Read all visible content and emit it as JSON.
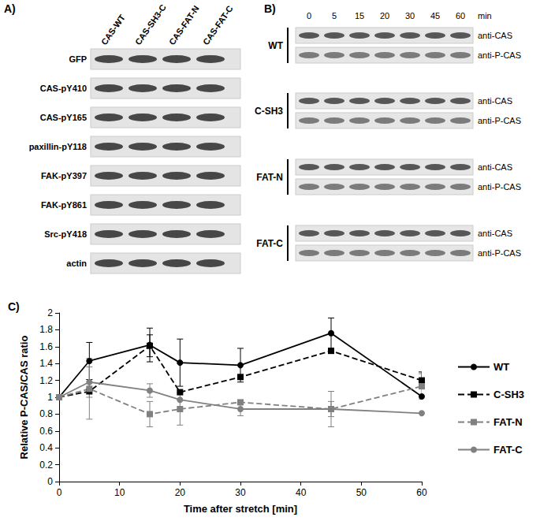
{
  "panels": [
    {
      "label": "A)",
      "columns": [
        "CAS-WT",
        "CAS-SH3-C",
        "CAS-FAT-N",
        "CAS-FAT-C"
      ],
      "rows": [
        "GFP",
        "CAS-pY410",
        "CAS-pY165",
        "paxillin-pY118",
        "FAK-pY397",
        "FAK-pY861",
        "Src-pY418",
        "actin"
      ]
    },
    {
      "label": "B)",
      "times": [
        0,
        5,
        15,
        20,
        30,
        45,
        60
      ],
      "time_unit": "min",
      "groups": [
        "WT",
        "C-SH3",
        "FAT-N",
        "FAT-C"
      ],
      "bands": [
        "anti-CAS",
        "anti-P-CAS"
      ]
    }
  ],
  "chart_data": {
    "type": "line",
    "title": "C)",
    "x_label": "Time after stretch [min]",
    "y_label": "Relative P-CAS/CAS ratio",
    "x": [
      0,
      5,
      15,
      20,
      30,
      45,
      60
    ],
    "xlim": [
      0,
      60
    ],
    "xticks": [
      0,
      10,
      20,
      30,
      40,
      50,
      60
    ],
    "ylim": [
      0,
      2
    ],
    "yticks": [
      0,
      0.2,
      0.4,
      0.6,
      0.8,
      1,
      1.2,
      1.4,
      1.6,
      1.8,
      2
    ],
    "grid": false,
    "legend": "right",
    "series": [
      {
        "name": "WT",
        "color": "#000000",
        "marker": "circle",
        "line_style": "solid",
        "values": [
          1,
          1.43,
          1.62,
          1.41,
          1.38,
          1.76,
          1.01
        ],
        "errors": [
          null,
          0.22,
          0.2,
          0.28,
          0.2,
          0.18,
          null
        ]
      },
      {
        "name": "C-SH3",
        "color": "#000000",
        "marker": "square",
        "line_style": "dashed",
        "values": [
          1,
          1.07,
          1.61,
          1.06,
          1.24,
          1.55,
          1.2
        ],
        "errors": [
          null,
          null,
          0.13,
          null,
          null,
          null,
          0.1
        ]
      },
      {
        "name": "FAT-N",
        "color": "#808080",
        "marker": "square",
        "line_style": "dashed",
        "values": [
          1,
          1.1,
          0.8,
          0.86,
          0.94,
          0.86,
          1.13
        ],
        "errors": [
          null,
          0.36,
          0.15,
          0.19,
          null,
          0.21,
          0.15
        ]
      },
      {
        "name": "FAT-C",
        "color": "#808080",
        "marker": "circle",
        "line_style": "solid",
        "values": [
          1,
          1.18,
          1.08,
          0.97,
          0.86,
          0.86,
          0.81
        ],
        "errors": [
          null,
          0.18,
          0.08,
          null,
          0.08,
          0.09,
          null
        ]
      }
    ]
  }
}
